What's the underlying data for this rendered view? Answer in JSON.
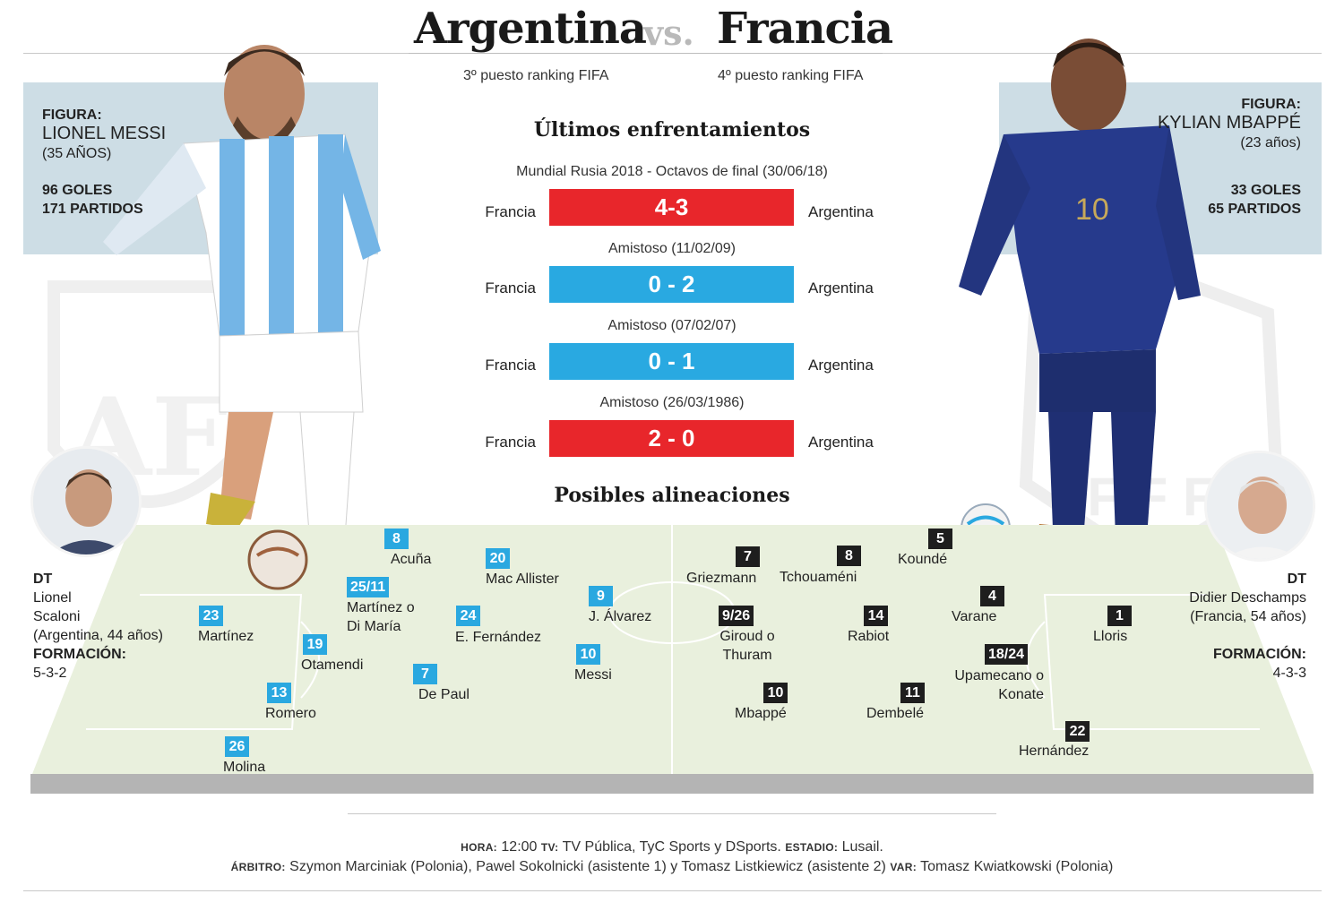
{
  "header": {
    "team_left": "Argentina",
    "vs": "vs.",
    "team_right": "Francia",
    "rank_left": "3º puesto ranking FIFA",
    "rank_right": "4º puesto ranking FIFA"
  },
  "stars": {
    "left": {
      "label": "FIGURA:",
      "name": "LIONEL MESSI",
      "age": "(35 AÑOS)",
      "goals": "96 GOLES",
      "matches": "171 PARTIDOS"
    },
    "right": {
      "label": "FIGURA:",
      "name": "KYLIAN MBAPPÉ",
      "age": "(23 años)",
      "goals": "33 GOLES",
      "matches": "65 PARTIDOS"
    }
  },
  "history": {
    "title": "Últimos enfrentamientos",
    "matches": [
      {
        "label": "Mundial Rusia 2018 - Octavos de final (30/06/18)",
        "team_a": "Francia",
        "score": "4-3",
        "team_b": "Argentina",
        "color": "#e8262b"
      },
      {
        "label": "Amistoso (11/02/09)",
        "team_a": "Francia",
        "score": "0 - 2",
        "team_b": "Argentina",
        "color": "#29a9e1"
      },
      {
        "label": "Amistoso (07/02/07)",
        "team_a": "Francia",
        "score": "0 - 1",
        "team_b": "Argentina",
        "color": "#29a9e1"
      },
      {
        "label": "Amistoso (26/03/1986)",
        "team_a": "Francia",
        "score": "2 - 0",
        "team_b": "Argentina",
        "color": "#e8262b"
      }
    ]
  },
  "lineups": {
    "title": "Posibles alineaciones",
    "argentina": [
      {
        "num": "8",
        "name": "Acuña"
      },
      {
        "num": "20",
        "name": "Mac Allister"
      },
      {
        "num": "25/11",
        "name": "Martínez o\nDi María"
      },
      {
        "num": "9",
        "name": "J. Álvarez"
      },
      {
        "num": "23",
        "name": "Martínez"
      },
      {
        "num": "24",
        "name": "E. Fernández"
      },
      {
        "num": "19",
        "name": "Otamendi"
      },
      {
        "num": "10",
        "name": "Messi"
      },
      {
        "num": "7",
        "name": "De Paul"
      },
      {
        "num": "13",
        "name": "Romero"
      },
      {
        "num": "26",
        "name": "Molina"
      }
    ],
    "france": [
      {
        "num": "7",
        "name": "Griezmann"
      },
      {
        "num": "8",
        "name": "Tchouaméni"
      },
      {
        "num": "5",
        "name": "Koundé"
      },
      {
        "num": "4",
        "name": "Varane"
      },
      {
        "num": "9/26",
        "name": "Giroud o\nThuram"
      },
      {
        "num": "14",
        "name": "Rabiot"
      },
      {
        "num": "1",
        "name": "Lloris"
      },
      {
        "num": "18/24",
        "name": "Upamecano o\nKonate"
      },
      {
        "num": "10",
        "name": "Mbappé"
      },
      {
        "num": "11",
        "name": "Dembelé"
      },
      {
        "num": "22",
        "name": "Hernández"
      }
    ]
  },
  "coaches": {
    "left": {
      "dt": "DT",
      "name": "Lionel\nScaloni\n(Argentina, 44 años)",
      "formation_label": "FORMACIÓN:",
      "formation": "5-3-2"
    },
    "right": {
      "dt": "DT",
      "name": "Didier Deschamps\n(Francia, 54 años)",
      "formation_label": "FORMACIÓN:",
      "formation": "4-3-3"
    }
  },
  "footer": {
    "hora_label": "HORA:",
    "hora": "12:00",
    "tv_label": "TV:",
    "tv": "TV Pública, TyC Sports y DSports.",
    "estadio_label": "ESTADIO:",
    "estadio": "Lusail.",
    "arbitro_label": "ÁRBITRO:",
    "arbitro": "Szymon Marciniak (Polonia), Pawel Sokolnicki (asistente 1) y Tomasz Listkiewicz (asistente 2)",
    "var_label": "VAR:",
    "var": "Tomasz Kwiatkowski (Polonia)"
  },
  "colors": {
    "argentina_blue": "#2aa8e0",
    "france_dark": "#1e1e1e",
    "win_red": "#e8262b",
    "panel_bg": "#cddde5",
    "pitch_green": "#e8f0dc"
  },
  "icons": [
    "messi-photo",
    "mbappe-photo",
    "afa-crest-watermark",
    "fff-crest-watermark",
    "football-ball",
    "coach-scaloni-photo",
    "coach-deschamps-photo"
  ]
}
